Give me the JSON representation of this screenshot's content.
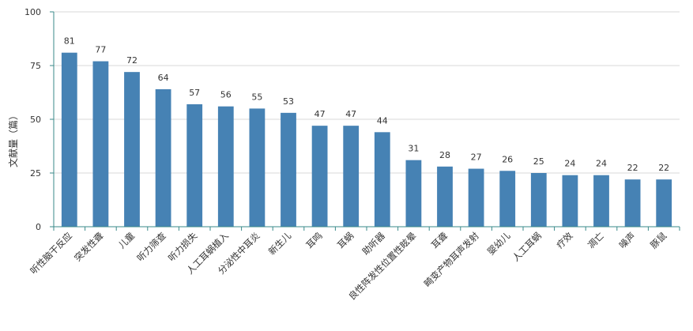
{
  "chart_data": {
    "type": "bar",
    "ylabel": "文献量（篇）",
    "xlabel": "",
    "ylim": [
      0,
      100
    ],
    "yticks": [
      0,
      25,
      50,
      75,
      100
    ],
    "grid": true,
    "legend": "none",
    "categories": [
      "听性脑干反应",
      "突发性聋",
      "儿童",
      "听力筛查",
      "听力损失",
      "人工耳蜗植入",
      "分泌性中耳炎",
      "新生儿",
      "耳鸣",
      "耳蜗",
      "助听器",
      "良性阵发性位置性眩晕",
      "耳聋",
      "畸变产物耳声发射",
      "婴幼儿",
      "人工耳蜗",
      "疗效",
      "凋亡",
      "噪声",
      "豚鼠"
    ],
    "values": [
      81,
      77,
      72,
      64,
      57,
      56,
      55,
      53,
      47,
      47,
      44,
      31,
      28,
      27,
      26,
      25,
      24,
      24,
      22,
      22
    ],
    "colors": {
      "bar": "#4682b4",
      "axis": "#3a8a8a",
      "grid": "#d9d9d9",
      "text": "#333333"
    }
  }
}
